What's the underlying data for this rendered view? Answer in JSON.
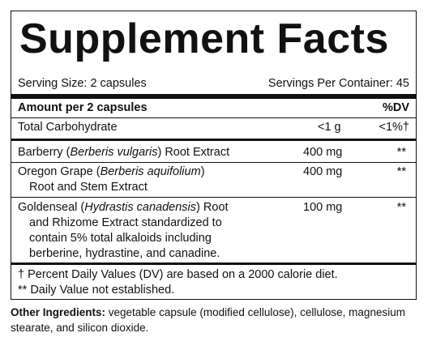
{
  "title": "Supplement Facts",
  "serving_size": "Serving Size: 2 capsules",
  "servings_per_container": "Servings Per Container: 45",
  "header": {
    "amount": "Amount per 2 capsules",
    "dv": "%DV"
  },
  "rows": [
    {
      "name": "Total Carbohydrate",
      "amount": "<1 g",
      "dv": "<1%†"
    },
    {
      "name_prefix": "Barberry (",
      "latin": "Berberis vulgaris",
      "name_suffix": ") Root Extract",
      "amount": "400 mg",
      "dv": "**"
    },
    {
      "name_prefix": "Oregon Grape (",
      "latin": "Berberis aquifolium",
      "name_suffix": ")",
      "line2": "Root and Stem Extract",
      "amount": "400 mg",
      "dv": "**"
    },
    {
      "name_prefix": "Goldenseal (",
      "latin": "Hydrastis canadensis",
      "name_suffix": ") Root",
      "line2": "and Rhizome Extract standardized to",
      "line3": "contain 5% total alkaloids including",
      "line4": "berberine, hydrastine, and canadine.",
      "amount": "100 mg",
      "dv": "**"
    }
  ],
  "footnotes": [
    "† Percent Daily Values (DV) are based on a 2000 calorie diet.",
    "** Daily Value not established."
  ],
  "other_ingredients": {
    "label": "Other Ingredients:",
    "text": " vegetable capsule (modified cellulose), cellulose, magnesium stearate, and silicon dioxide."
  }
}
